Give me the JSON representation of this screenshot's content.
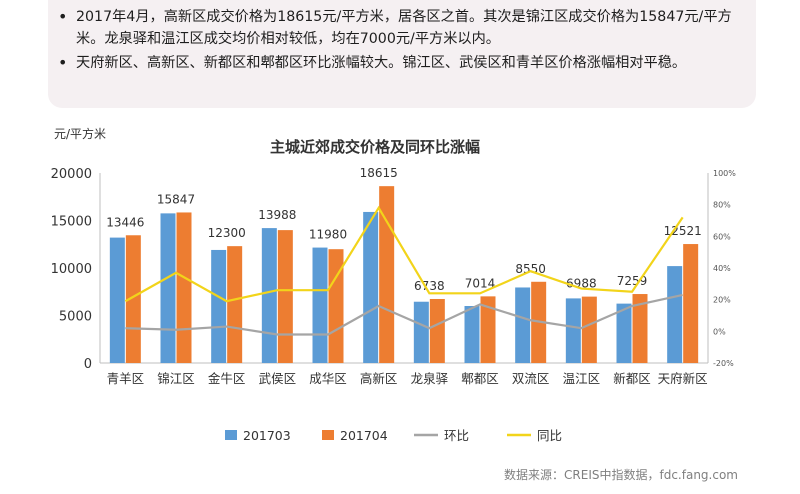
{
  "notes": {
    "bullet1": "2017年4月，高新区成交价格为18615元/平方米，居各区之首。其次是锦江区成交价格为15847元/平方米。龙泉驿和温江区成交均价相对较低，均在7000元/平方米以内。",
    "bullet2": "天府新区、高新区、新都区和郫都区环比涨幅较大。锦江区、武侯区和青羊区价格涨幅相对平稳。"
  },
  "chart_data": {
    "type": "bar",
    "title": "主城近郊成交价格及同环比涨幅",
    "ylabel": "元/平方米",
    "ylim": [
      0,
      20000
    ],
    "yticks": [
      "0",
      "5000",
      "10000",
      "15000",
      "20000"
    ],
    "y2lim": [
      -20,
      100
    ],
    "y2ticks": [
      "-20%",
      "0%",
      "20%",
      "40%",
      "60%",
      "80%",
      "100%"
    ],
    "categories": [
      "青羊区",
      "锦江区",
      "金牛区",
      "武侯区",
      "成华区",
      "高新区",
      "龙泉驿",
      "郫都区",
      "双流区",
      "温江区",
      "新都区",
      "天府新区"
    ],
    "series": [
      {
        "name": "201703",
        "type": "bar",
        "color": "#5b9bd5",
        "values": [
          13200,
          15750,
          11900,
          14200,
          12150,
          15900,
          6450,
          6000,
          7950,
          6800,
          6250,
          10200
        ]
      },
      {
        "name": "201704",
        "type": "bar",
        "color": "#ed7d31",
        "values": [
          13446,
          15847,
          12300,
          13988,
          11980,
          18615,
          6738,
          7014,
          8550,
          6988,
          7259,
          12521
        ]
      },
      {
        "name": "环比",
        "type": "line",
        "axis": "right",
        "color": "#a5a5a5",
        "values": [
          2,
          1,
          3,
          -2,
          -2,
          16,
          2,
          17,
          7,
          2,
          16,
          23
        ]
      },
      {
        "name": "同比",
        "type": "line",
        "axis": "right",
        "color": "#f2d41a",
        "values": [
          19,
          37,
          19,
          26,
          26,
          78,
          24,
          24,
          38,
          27,
          25,
          72
        ]
      }
    ],
    "data_labels": [
      "13446",
      "15847",
      "12300",
      "13988",
      "11980",
      "18615",
      "6738",
      "7014",
      "8550",
      "6988",
      "7259",
      "12521"
    ],
    "legend_position": "bottom",
    "grid": false
  },
  "source": "数据来源：CREIS中指数据，fdc.fang.com"
}
